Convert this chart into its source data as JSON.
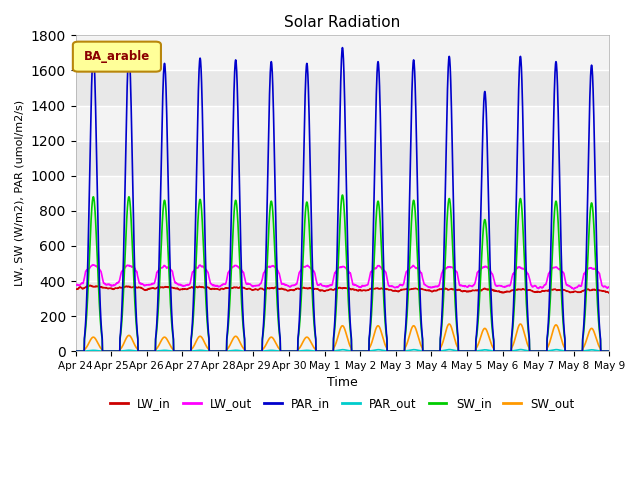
{
  "title": "Solar Radiation",
  "ylabel": "LW, SW (W/m2), PAR (umol/m2/s)",
  "xlabel": "Time",
  "ylim": [
    0,
    1800
  ],
  "yticks": [
    0,
    200,
    400,
    600,
    800,
    1000,
    1200,
    1400,
    1600,
    1800
  ],
  "legend_label": "BA_arable",
  "legend_label_color": "#8b0000",
  "legend_box_color": "#ffff99",
  "legend_box_edge": "#b8860b",
  "series": {
    "LW_in": {
      "color": "#cc0000",
      "lw": 1.2
    },
    "LW_out": {
      "color": "#ff00ff",
      "lw": 1.2
    },
    "PAR_in": {
      "color": "#0000cc",
      "lw": 1.2
    },
    "PAR_out": {
      "color": "#00cccc",
      "lw": 1.2
    },
    "SW_in": {
      "color": "#00cc00",
      "lw": 1.2
    },
    "SW_out": {
      "color": "#ff9900",
      "lw": 1.2
    }
  },
  "xtick_labels": [
    "Apr 24",
    "Apr 25",
    "Apr 26",
    "Apr 27",
    "Apr 28",
    "Apr 29",
    "Apr 30",
    "May 1",
    "May 2",
    "May 3",
    "May 4",
    "May 5",
    "May 6",
    "May 7",
    "May 8",
    "May 9"
  ],
  "plot_bg_color": "#e8e8e8",
  "fig_bg_color": "#ffffff"
}
